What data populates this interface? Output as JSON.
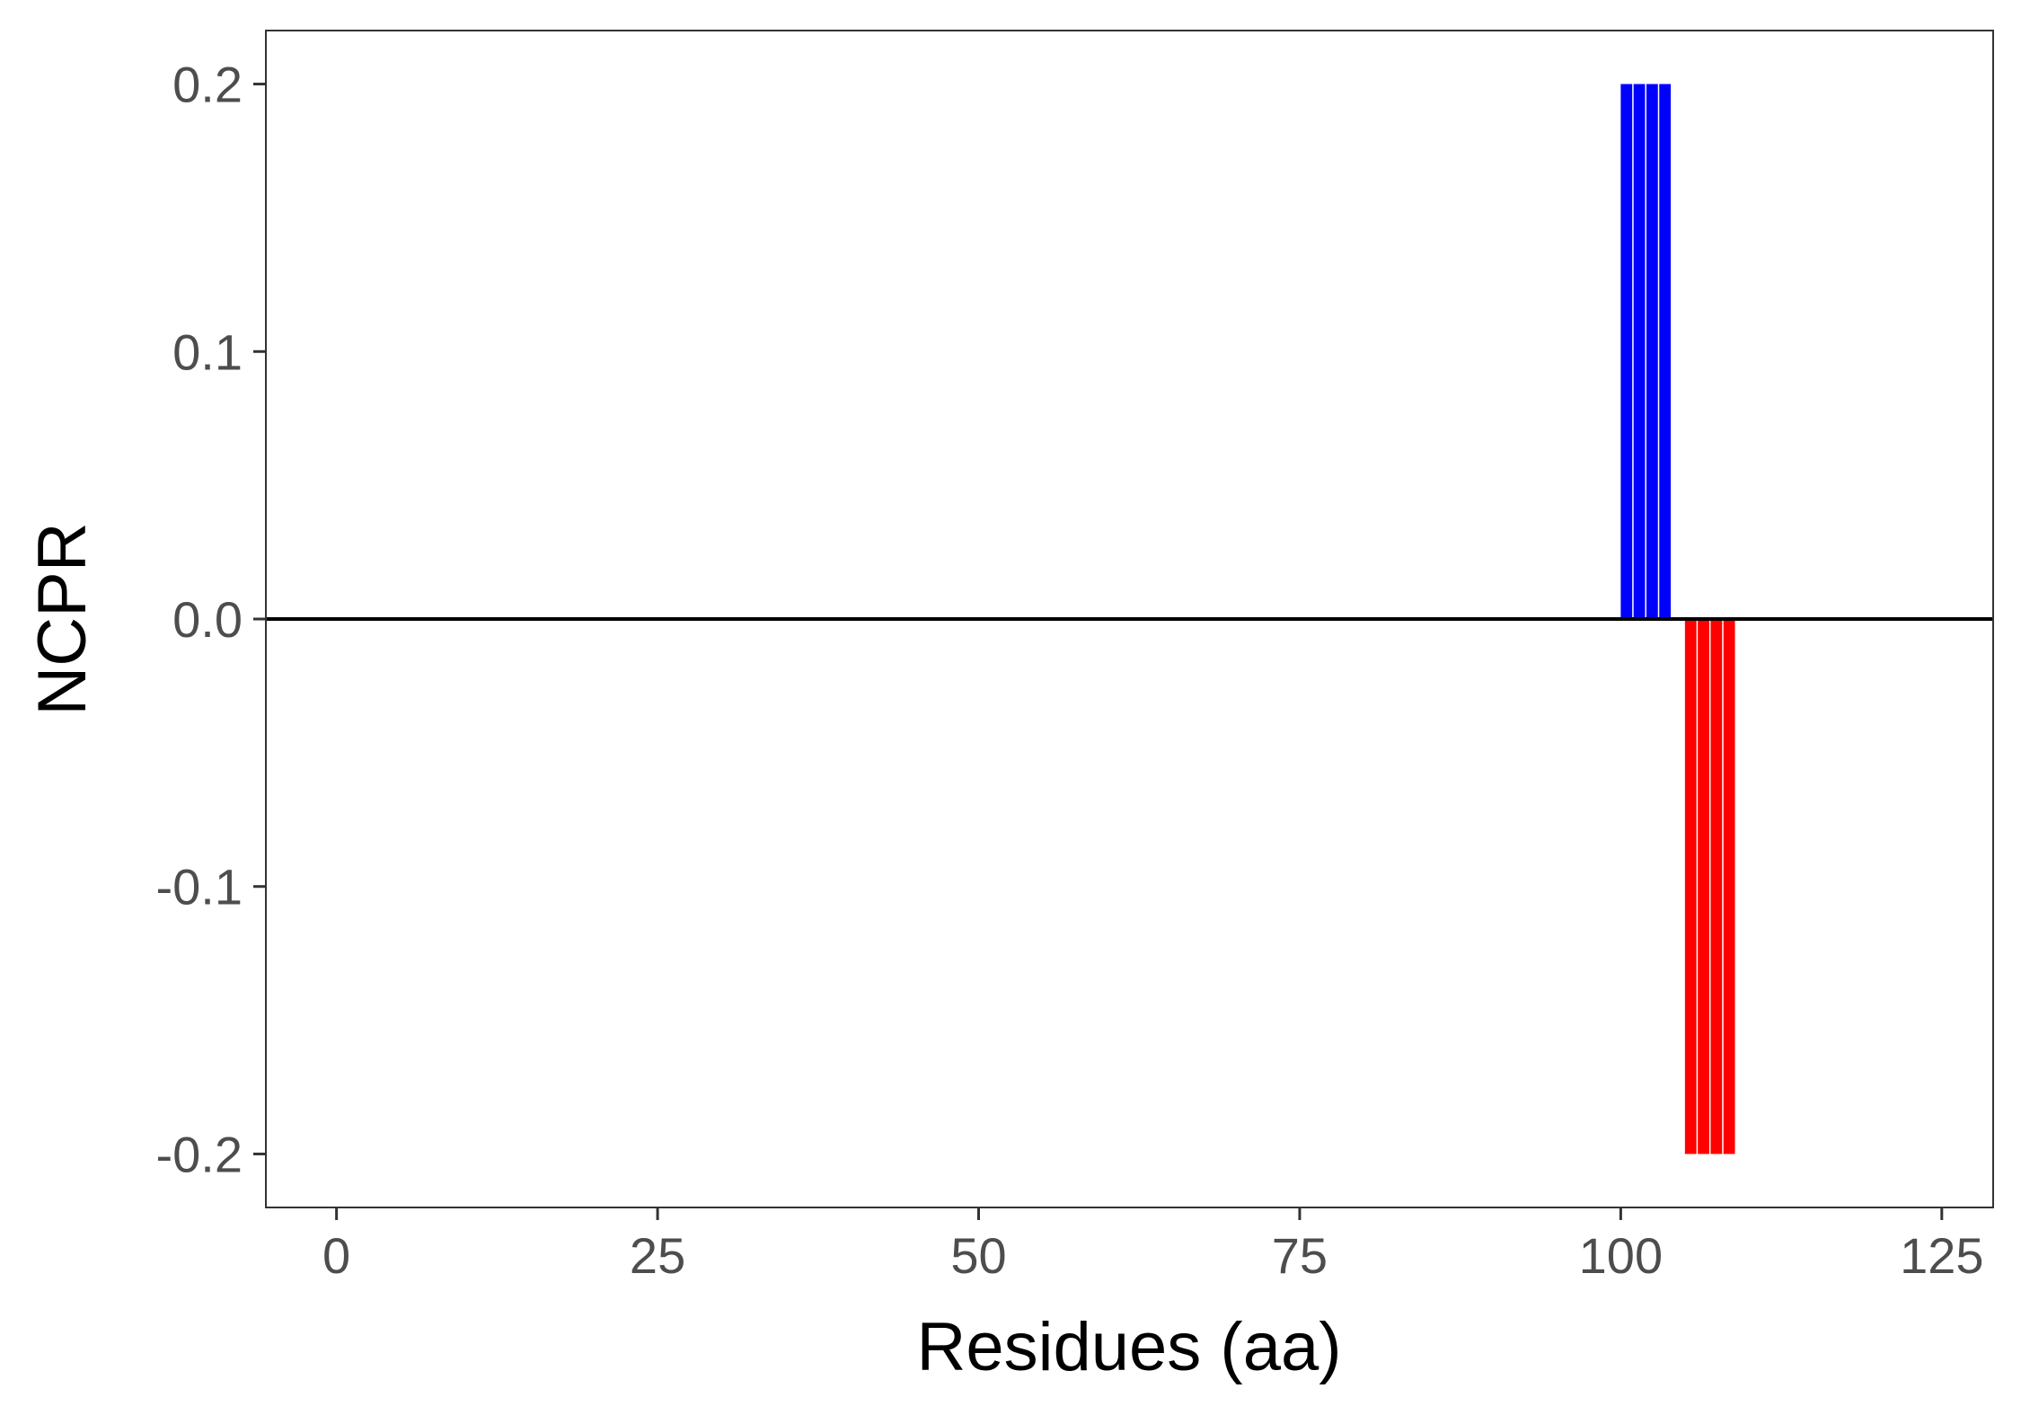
{
  "chart_data": {
    "type": "bar",
    "title": "",
    "xlabel": "Residues (aa)",
    "ylabel": "NCPR",
    "xlim": [
      -5.5,
      129
    ],
    "ylim": [
      -0.22,
      0.22
    ],
    "x_ticks": [
      0,
      25,
      50,
      75,
      100,
      125
    ],
    "x_tick_labels": [
      "0",
      "25",
      "50",
      "75",
      "100",
      "125"
    ],
    "y_ticks": [
      -0.2,
      -0.1,
      0.0,
      0.1,
      0.2
    ],
    "y_tick_labels": [
      "-0.2",
      "-0.1",
      "0.0",
      "0.1",
      "0.2"
    ],
    "zero_line": true,
    "grid": false,
    "colors": {
      "positive": "#0000ff",
      "negative": "#ff0000",
      "zero_line": "#000000",
      "panel_border": "#333333"
    },
    "series": [
      {
        "x": [
          100,
          101,
          102,
          103
        ],
        "values": [
          0.2,
          0.2,
          0.2,
          0.2
        ],
        "color": "#0000ff"
      },
      {
        "x": [
          105,
          106,
          107,
          108
        ],
        "values": [
          -0.2,
          -0.2,
          -0.2,
          -0.2
        ],
        "color": "#ff0000"
      }
    ]
  }
}
